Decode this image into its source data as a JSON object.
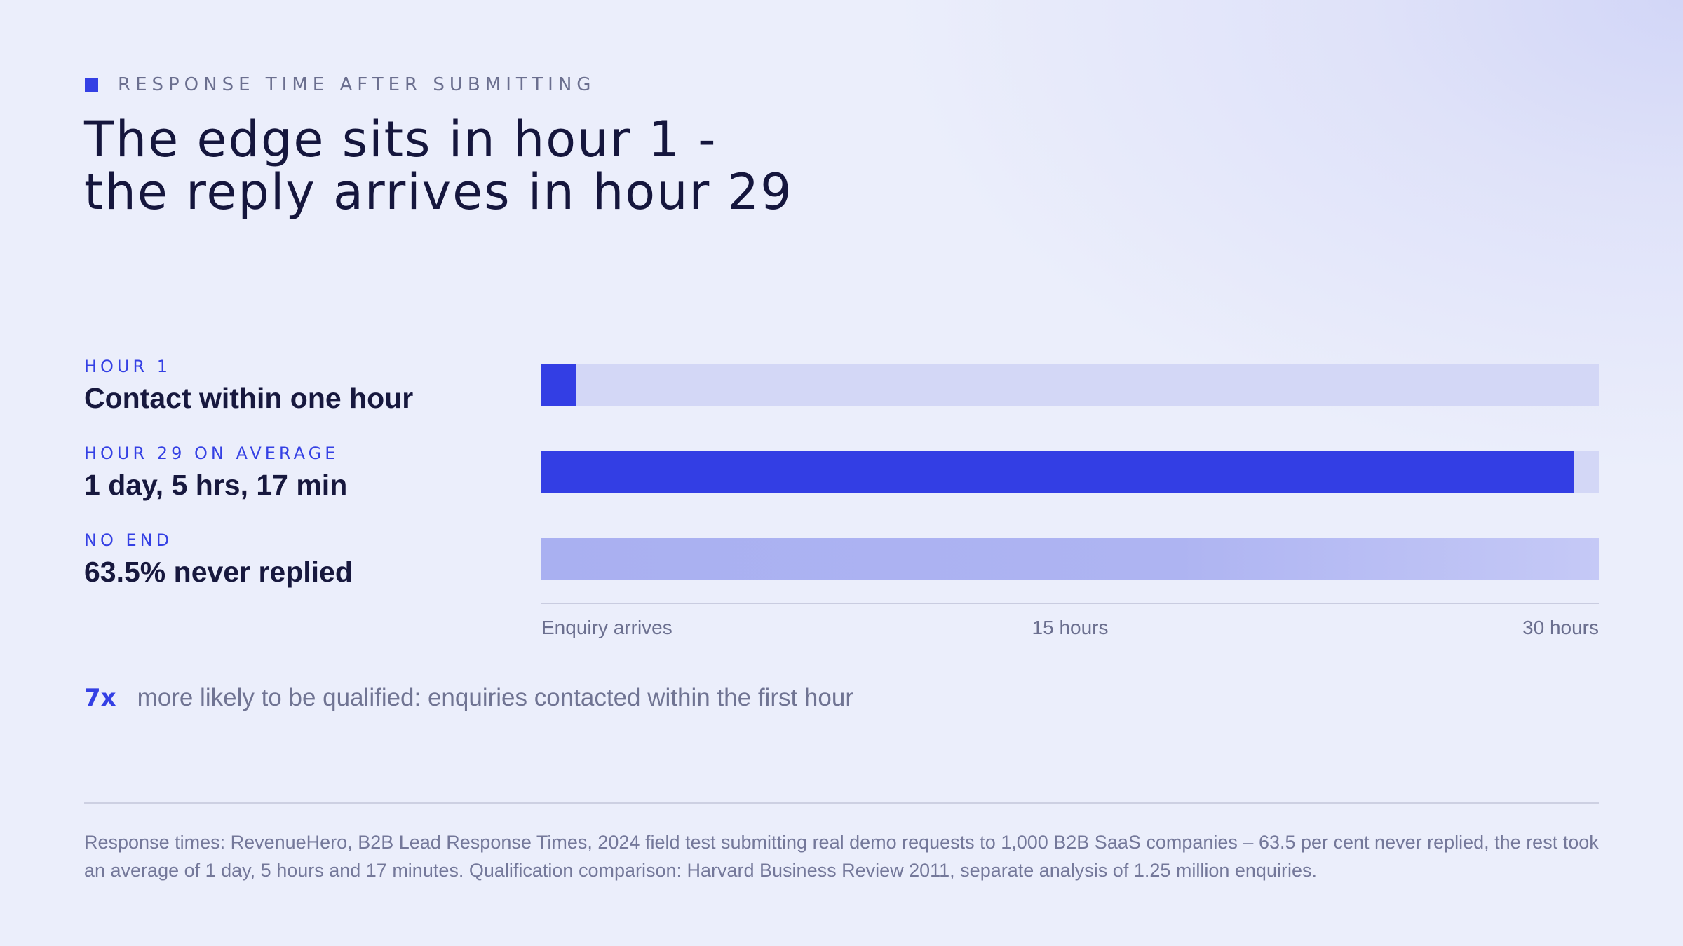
{
  "header": {
    "eyebrow": "RESPONSE TIME AFTER SUBMITTING",
    "title_line1": "The edge sits in hour 1 -",
    "title_line2": "the reply arrives in hour 29"
  },
  "rows": [
    {
      "eyebrow": "HOUR 1",
      "value": "Contact within one hour"
    },
    {
      "eyebrow": "HOUR 29 ON AVERAGE",
      "value": "1 day, 5 hrs, 17 min"
    },
    {
      "eyebrow": "NO END",
      "value": "63.5% never replied"
    }
  ],
  "axis": {
    "start_label": "Enquiry arrives",
    "mid_label": "15 hours",
    "end_label": "30 hours"
  },
  "callout": {
    "number": "7x",
    "text": "more likely to be qualified: enquiries contacted within the first hour"
  },
  "footnote": "Response times: RevenueHero, B2B Lead Response Times, 2024 field test submitting real demo requests to 1,000 B2B SaaS companies – 63.5 per cent never replied, the rest took an average of 1 day, 5 hours and 17 minutes. Qualification comparison: Harvard Business Review 2011, separate analysis of 1.25 million enquiries.",
  "colors": {
    "accent": "#333ee4",
    "track": "#d3d7f6",
    "faded_bar": "#a9b0f1",
    "title": "#15163d"
  },
  "chart_data": {
    "type": "bar",
    "orientation": "horizontal",
    "categories": [
      "Contact within one hour",
      "1 day, 5 hrs, 17 min",
      "63.5% never replied"
    ],
    "values": [
      1,
      29.28,
      30
    ],
    "value_unit": "hours",
    "xlim": [
      0,
      30
    ],
    "xticks": [
      "Enquiry arrives",
      "15 hours",
      "30 hours"
    ],
    "grid": false,
    "legend": "none"
  }
}
